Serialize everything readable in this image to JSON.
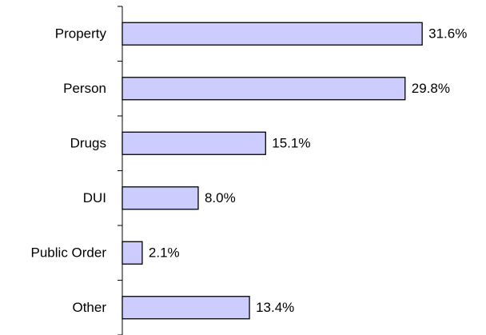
{
  "chart_data": {
    "type": "bar",
    "orientation": "horizontal",
    "categories": [
      "Property",
      "Person",
      "Drugs",
      "DUI",
      "Public Order",
      "Other"
    ],
    "values": [
      31.6,
      29.8,
      15.1,
      8.0,
      2.1,
      13.4
    ],
    "value_labels": [
      "31.6%",
      "29.8%",
      "15.1%",
      "8.0%",
      "2.1%",
      "13.4%"
    ],
    "color": "#ccccff",
    "xlim": [
      0,
      35
    ]
  }
}
